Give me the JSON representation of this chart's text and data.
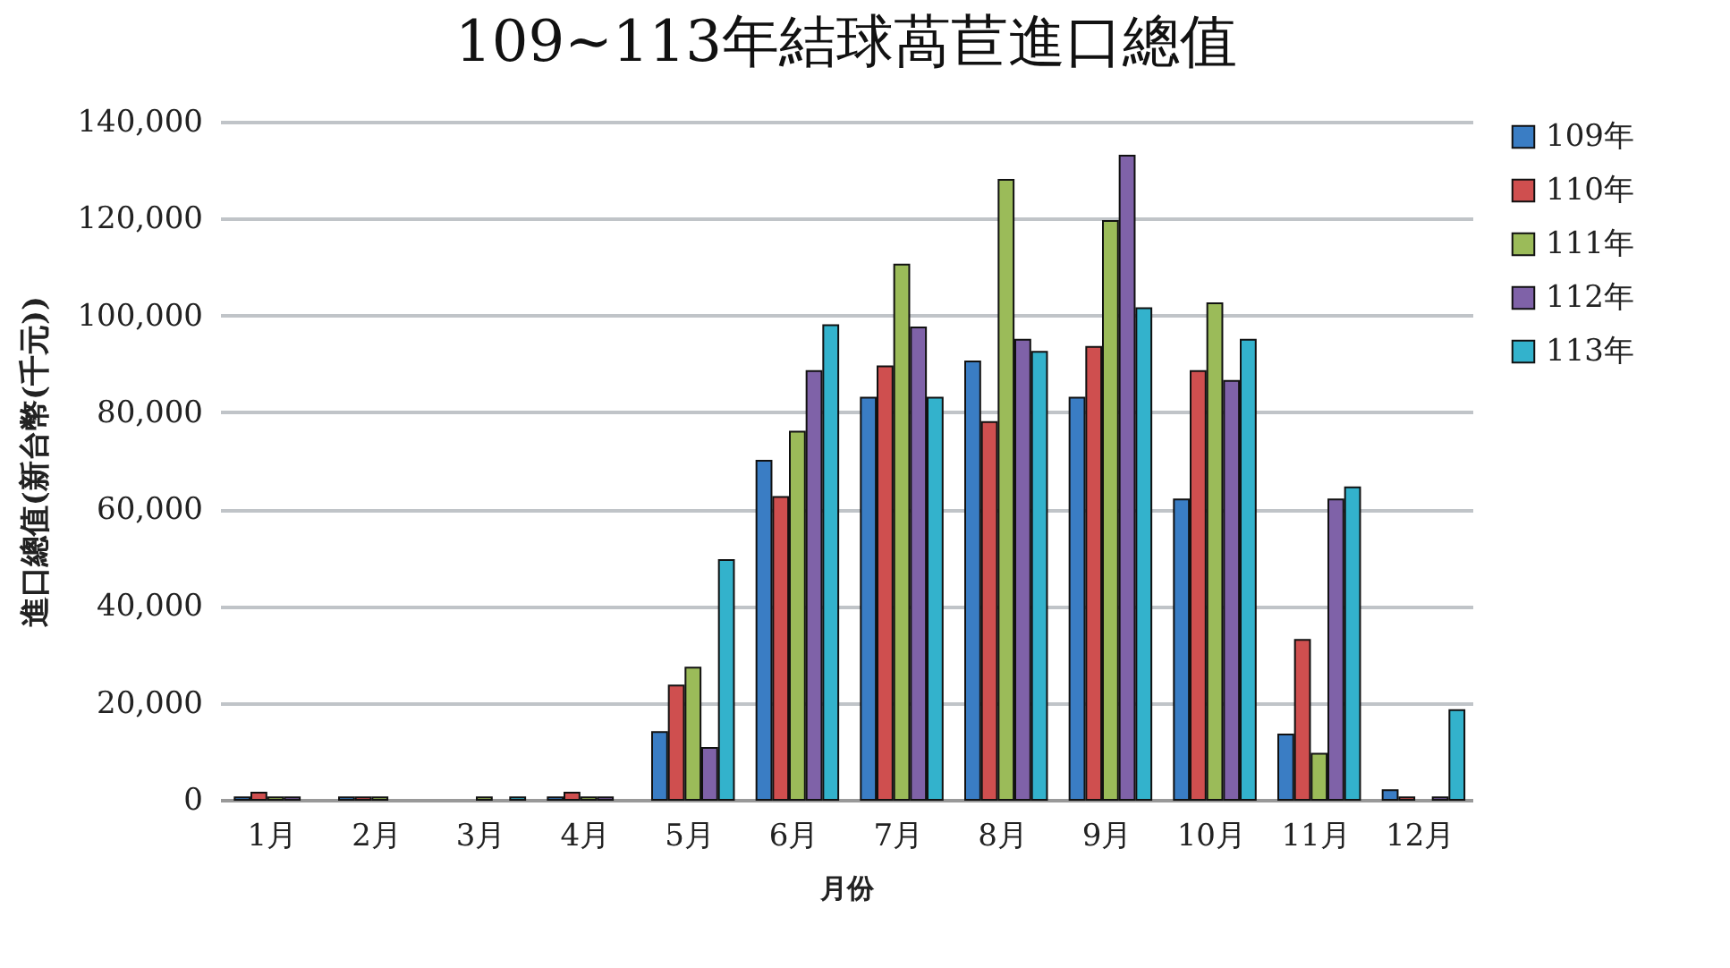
{
  "chart_data": {
    "type": "bar",
    "title": "109~113年結球萵苣進口總值",
    "xlabel": "月份",
    "ylabel": "進口總值(新台幣(千元))",
    "categories": [
      "1月",
      "2月",
      "3月",
      "4月",
      "5月",
      "6月",
      "7月",
      "8月",
      "9月",
      "10月",
      "11月",
      "12月"
    ],
    "series": [
      {
        "name": "109年",
        "color": "#3a7dc4",
        "values": [
          500,
          500,
          null,
          500,
          14000,
          70000,
          83000,
          90500,
          83000,
          62000,
          13500,
          2000
        ]
      },
      {
        "name": "110年",
        "color": "#cf4f4f",
        "values": [
          1500,
          500,
          null,
          1500,
          23600,
          62500,
          89500,
          78000,
          93500,
          88500,
          33000,
          500
        ]
      },
      {
        "name": "111年",
        "color": "#9bbb59",
        "values": [
          500,
          500,
          500,
          500,
          27300,
          76000,
          110500,
          128000,
          119500,
          102500,
          9500,
          null
        ]
      },
      {
        "name": "112年",
        "color": "#7f62a8",
        "values": [
          500,
          null,
          null,
          500,
          10700,
          88500,
          97500,
          95000,
          133000,
          86500,
          62000,
          500
        ]
      },
      {
        "name": "113年",
        "color": "#33b2cc",
        "values": [
          null,
          null,
          500,
          null,
          49500,
          98000,
          83000,
          92500,
          101500,
          95000,
          64500,
          18500
        ]
      }
    ],
    "ylim": [
      0,
      140000
    ],
    "yticks": [
      0,
      {
        "value": 20000,
        "label": "20,000"
      },
      {
        "value": 40000,
        "label": "40,000"
      },
      {
        "value": 60000,
        "label": "60,000"
      },
      {
        "value": 80000,
        "label": "80,000"
      },
      {
        "value": 100000,
        "label": "100,000"
      },
      {
        "value": 120000,
        "label": "120,000"
      },
      {
        "value": 140000,
        "label": "140,000"
      }
    ],
    "grid": "y",
    "legend": "right"
  }
}
